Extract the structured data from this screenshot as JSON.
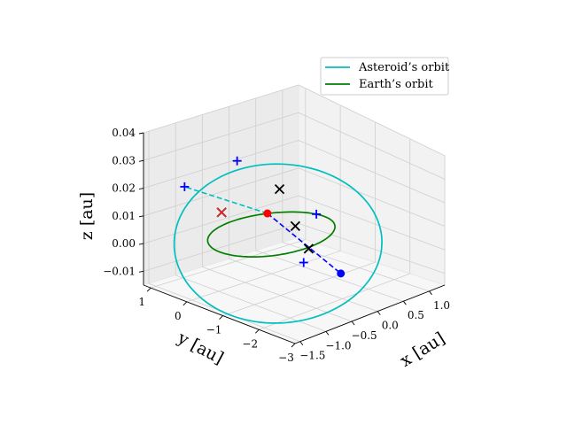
{
  "chart_data": {
    "type": "line",
    "projection": "3d",
    "title": "",
    "xlabel": "x [au]",
    "ylabel": "y [au]",
    "zlabel": "z [au]",
    "xlim": [
      -1.6,
      1.3
    ],
    "ylim": [
      -3.0,
      1.2
    ],
    "zlim": [
      -0.015,
      0.04
    ],
    "x_ticks": [
      "−1.5",
      "−1.0",
      "−0.5",
      "0.0",
      "0.5",
      "1.0"
    ],
    "y_ticks": [
      "1",
      "0",
      "−1",
      "−2",
      "−3"
    ],
    "z_ticks": [
      "0.04",
      "0.03",
      "0.02",
      "0.01",
      "0.00",
      "−0.01"
    ],
    "grid": true,
    "legend_position": "top-right",
    "series": [
      {
        "name": "Asteroid’s orbit",
        "color": "#00bfbf",
        "ellipse": {
          "center": [
            -0.2,
            -0.5
          ],
          "a": 1.5,
          "b": 1.9,
          "z_amp": 0.016,
          "z_phase": 0.65
        }
      },
      {
        "name": "Earth’s orbit",
        "color": "#008000",
        "ellipse": {
          "center": [
            0.0,
            0.0
          ],
          "a": 1.0,
          "b": 1.0,
          "z_amp": 0.0,
          "z_phase": 0.0
        }
      }
    ],
    "dashed_lines": [
      {
        "color": "#0000ff",
        "from": [
          0.5,
          0.87,
          0.0
        ],
        "to": [
          -0.3,
          -2.4,
          0.0
        ]
      },
      {
        "color": "#00bfbf",
        "from": [
          0.5,
          0.87,
          0.0
        ],
        "to": [
          -1.1,
          0.8,
          0.02
        ]
      }
    ],
    "points": [
      {
        "marker": "dot",
        "color": "#ff0000",
        "x": 0.5,
        "y": 0.87,
        "z": 0.0
      },
      {
        "marker": "dot",
        "color": "#0000ff",
        "x": -0.3,
        "y": -2.4,
        "z": 0.0
      },
      {
        "marker": "plus",
        "color": "#0000ff",
        "x": 0.25,
        "y": 1.35,
        "z": 0.018
      },
      {
        "marker": "plus",
        "color": "#0000ff",
        "x": -1.1,
        "y": 0.8,
        "z": 0.02
      },
      {
        "marker": "plus",
        "color": "#0000ff",
        "x": 0.98,
        "y": 0.2,
        "z": 0.0
      },
      {
        "marker": "plus",
        "color": "#0000ff",
        "x": -0.4,
        "y": -1.5,
        "z": 0.0
      },
      {
        "marker": "x",
        "color": "#000000",
        "x": 0.55,
        "y": 0.6,
        "z": 0.01
      },
      {
        "marker": "x",
        "color": "#000000",
        "x": 0.45,
        "y": 0.0,
        "z": 0.0
      },
      {
        "marker": "x",
        "color": "#000000",
        "x": 0.0,
        "y": -1.05,
        "z": 0.0
      },
      {
        "marker": "x",
        "color": "#000000",
        "x": -1.35,
        "y": -0.6,
        "z": 0.021
      },
      {
        "marker": "x",
        "color": "#d62728",
        "x": -1.35,
        "y": -0.6,
        "z": 0.021
      }
    ]
  }
}
